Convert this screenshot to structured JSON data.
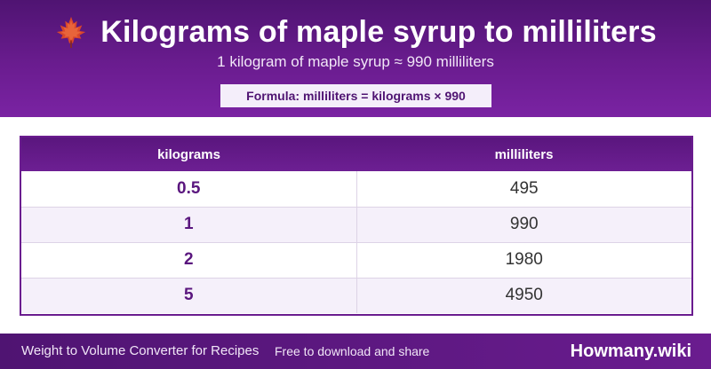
{
  "header": {
    "title": "Kilograms of maple syrup to milliliters",
    "subtitle": "1 kilogram of maple syrup ≈ 990 milliliters",
    "formula": "Formula: milliliters = kilograms × 990",
    "icon": "maple-leaf-icon"
  },
  "table": {
    "columns": [
      "kilograms",
      "milliliters"
    ],
    "rows": [
      {
        "kg": "0.5",
        "ml": "495"
      },
      {
        "kg": "1",
        "ml": "990"
      },
      {
        "kg": "2",
        "ml": "1980"
      },
      {
        "kg": "5",
        "ml": "4950"
      }
    ]
  },
  "footer": {
    "left": "Weight to Volume Converter for Recipes",
    "middle": "Free to download and share",
    "brand": "Howmany.wiki"
  },
  "colors": {
    "primary": "#6a1c8f",
    "dark": "#4f1472",
    "leaf": "#c0392b"
  }
}
